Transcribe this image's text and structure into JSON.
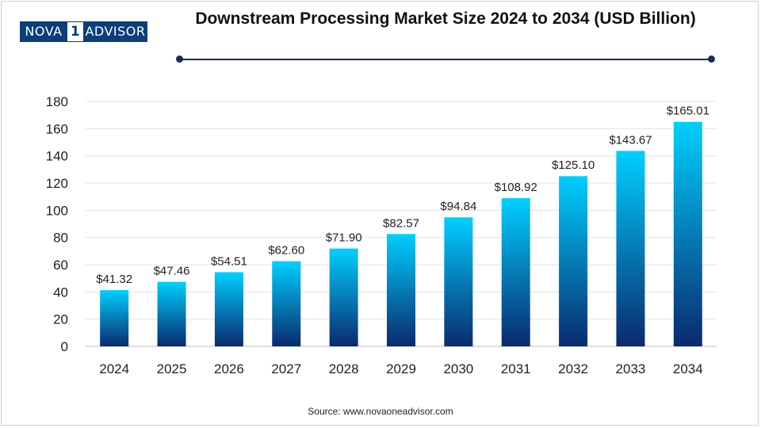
{
  "brand": {
    "logo_left": "NOVA",
    "logo_mid": "1",
    "logo_right": "ADVISOR"
  },
  "title": "Downstream Processing Market Size 2024 to 2034 (USD Billion)",
  "source": "Source: www.novaoneadvisor.com",
  "colors": {
    "bar_top": "#00cfff",
    "bar_bottom": "#0a2a6e",
    "grid": "#e3e3e3",
    "rule": "#1b2a5a"
  },
  "chart_data": {
    "type": "bar",
    "title": "Downstream Processing Market Size 2024 to 2034 (USD Billion)",
    "xlabel": "",
    "ylabel": "",
    "categories": [
      "2024",
      "2025",
      "2026",
      "2027",
      "2028",
      "2029",
      "2030",
      "2031",
      "2032",
      "2033",
      "2034"
    ],
    "values": [
      41.32,
      47.46,
      54.51,
      62.6,
      71.9,
      82.57,
      94.84,
      108.92,
      125.1,
      143.67,
      165.01
    ],
    "data_labels": [
      "$41.32",
      "$47.46",
      "$54.51",
      "$62.60",
      "$71.90",
      "$82.57",
      "$94.84",
      "$108.92",
      "$125.10",
      "$143.67",
      "$165.01"
    ],
    "ylim": [
      0,
      180
    ],
    "yticks": [
      0,
      20,
      40,
      60,
      80,
      100,
      120,
      140,
      160,
      180
    ],
    "grid": true,
    "legend": "none"
  }
}
